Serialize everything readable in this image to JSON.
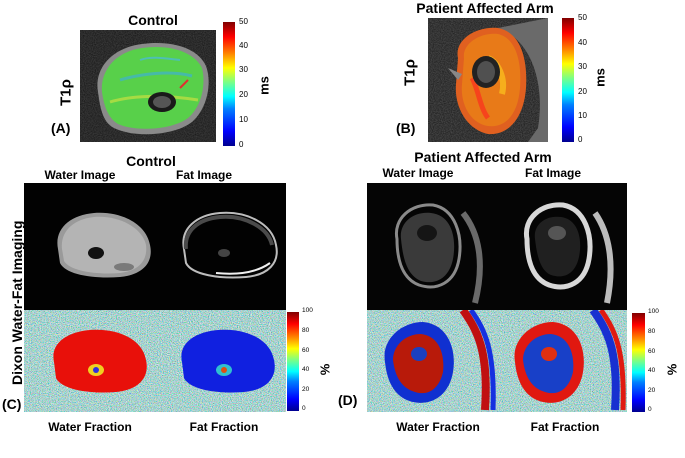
{
  "panels": {
    "A": {
      "title": "Control",
      "side_label": "T1ρ",
      "letter": "(A)",
      "unit": "ms",
      "colorbar_ticks": [
        "50",
        "40",
        "30",
        "20",
        "10",
        "0"
      ]
    },
    "B": {
      "title": "Patient Affected Arm",
      "side_label": "T1ρ",
      "letter": "(B)",
      "unit": "ms",
      "colorbar_ticks": [
        "50",
        "40",
        "30",
        "20",
        "10",
        "0"
      ]
    },
    "C": {
      "title": "Control",
      "letter": "(C)",
      "water_image_label": "Water Image",
      "fat_image_label": "Fat Image",
      "water_fraction_label": "Water Fraction",
      "fat_fraction_label": "Fat Fraction",
      "unit": "%",
      "colorbar_ticks": [
        "100",
        "80",
        "60",
        "40",
        "20",
        "0"
      ]
    },
    "D": {
      "title": "Patient Affected Arm",
      "letter": "(D)",
      "water_image_label": "Water Image",
      "fat_image_label": "Fat Image",
      "water_fraction_label": "Water Fraction",
      "fat_fraction_label": "Fat Fraction",
      "unit": "%",
      "colorbar_ticks": [
        "100",
        "80",
        "60",
        "40",
        "20",
        "0"
      ]
    }
  },
  "row_label": "Dixon Water-Fat Imaging"
}
